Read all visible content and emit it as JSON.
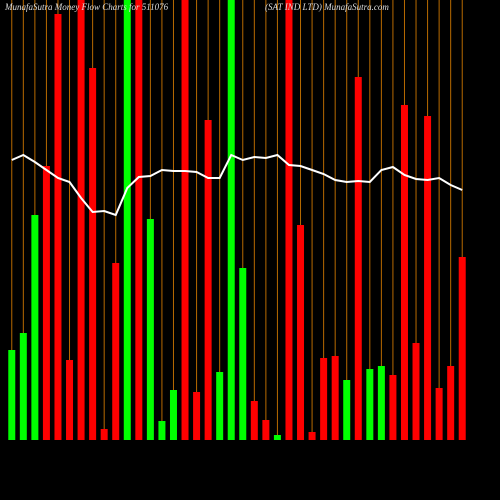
{
  "chart_data": {
    "type": "bar",
    "title": "MunafaSutra Money Flow Charts for 511076",
    "subtitle": "(SAT IND LTD) MunafaSutra.com",
    "values": [
      90,
      107,
      225,
      274,
      426,
      80,
      440,
      372,
      11,
      177,
      440,
      440,
      221,
      19,
      50,
      440,
      48,
      320,
      68,
      440,
      172,
      39,
      20,
      5,
      440,
      215,
      8,
      82,
      84,
      60,
      363,
      71,
      74,
      65,
      335,
      97,
      324,
      52,
      74,
      183
    ],
    "colors": [
      "#00ff00",
      "#00ff00",
      "#00ff00",
      "#ff0000",
      "#ff0000",
      "#ff0000",
      "#ff0000",
      "#ff0000",
      "#ff0000",
      "#ff0000",
      "#00ff00",
      "#ff0000",
      "#00ff00",
      "#00ff00",
      "#00ff00",
      "#ff0000",
      "#ff0000",
      "#ff0000",
      "#00ff00",
      "#00ff00",
      "#00ff00",
      "#ff0000",
      "#ff0000",
      "#00ff00",
      "#ff0000",
      "#ff0000",
      "#ff0000",
      "#ff0000",
      "#ff0000",
      "#00ff00",
      "#ff0000",
      "#00ff00",
      "#00ff00",
      "#ff0000",
      "#ff0000",
      "#ff0000",
      "#ff0000",
      "#ff0000",
      "#ff0000",
      "#ff0000"
    ],
    "line": {
      "color": "#ffffff",
      "values": [
        280,
        285,
        278,
        270,
        262,
        258,
        242,
        228,
        229,
        225,
        252,
        263,
        264,
        270,
        269,
        269,
        268,
        262,
        262,
        285,
        280,
        283,
        282,
        285,
        275,
        274,
        270,
        266,
        260,
        258,
        259,
        258,
        270,
        273,
        265,
        261,
        260,
        262,
        255,
        250
      ]
    },
    "grid_color": "#b86a00",
    "ylim": [
      0,
      440
    ]
  }
}
